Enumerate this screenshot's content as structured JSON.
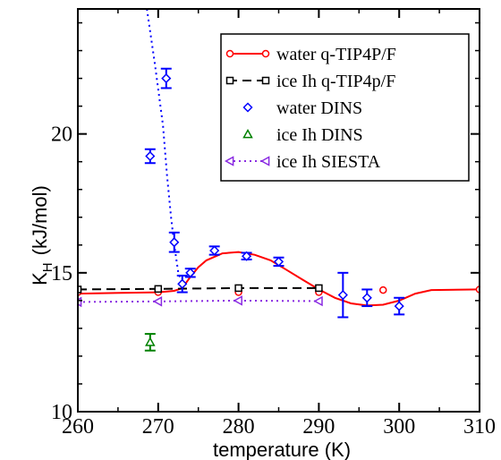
{
  "chart_data": {
    "type": "line",
    "xlabel": "temperature (K)",
    "ylabel_main": "K",
    "ylabel_sub": "H",
    "ylabel_unit": "(kJ/mol)",
    "xlim": [
      260,
      310
    ],
    "ylim": [
      10,
      24.5
    ],
    "xticks": [
      260,
      270,
      280,
      290,
      300,
      310
    ],
    "yticks": [
      10,
      15,
      20
    ],
    "grid": false,
    "legend_position": "top-right",
    "series": [
      {
        "name": "water q-TIP4P/F",
        "color": "#ff0000",
        "line": "solid",
        "marker": "circle",
        "points": [
          [
            260,
            14.3
          ],
          [
            270,
            14.3
          ],
          [
            280,
            14.3
          ],
          [
            290,
            14.3
          ],
          [
            298,
            14.38
          ],
          [
            310,
            14.4
          ]
        ],
        "fit_curve": [
          [
            260,
            14.25
          ],
          [
            270,
            14.3
          ],
          [
            272,
            14.35
          ],
          [
            273,
            14.45
          ],
          [
            274,
            14.85
          ],
          [
            275,
            15.2
          ],
          [
            276,
            15.45
          ],
          [
            278,
            15.7
          ],
          [
            280,
            15.75
          ],
          [
            282,
            15.65
          ],
          [
            284,
            15.45
          ],
          [
            286,
            15.1
          ],
          [
            288,
            14.75
          ],
          [
            290,
            14.4
          ],
          [
            292,
            14.1
          ],
          [
            294,
            13.9
          ],
          [
            296,
            13.82
          ],
          [
            298,
            13.85
          ],
          [
            300,
            14.0
          ],
          [
            302,
            14.25
          ],
          [
            304,
            14.38
          ],
          [
            310,
            14.4
          ]
        ]
      },
      {
        "name": "ice Ih q-TIP4p/F",
        "color": "#000000",
        "line": "dashed",
        "marker": "square",
        "points": [
          [
            260,
            14.4
          ],
          [
            270,
            14.42
          ],
          [
            280,
            14.45
          ],
          [
            290,
            14.45
          ]
        ]
      },
      {
        "name": "water DINS",
        "color": "#0000ff",
        "line": "none",
        "marker": "diamond",
        "points": [
          {
            "x": 269,
            "y": 19.2,
            "err": 0.25
          },
          {
            "x": 271,
            "y": 22.0,
            "err": 0.35
          },
          {
            "x": 272,
            "y": 16.1,
            "err": 0.35
          },
          {
            "x": 273,
            "y": 14.6,
            "err": 0.3
          },
          {
            "x": 274,
            "y": 15.0,
            "err": 0.15
          },
          {
            "x": 277,
            "y": 15.8,
            "err": 0.15
          },
          {
            "x": 281,
            "y": 15.6,
            "err": 0.12
          },
          {
            "x": 285,
            "y": 15.4,
            "err": 0.15
          },
          {
            "x": 293,
            "y": 14.2,
            "err": 0.8
          },
          {
            "x": 296,
            "y": 14.1,
            "err": 0.3
          },
          {
            "x": 300,
            "y": 13.8,
            "err": 0.3
          }
        ],
        "fit_curve": [
          [
            268.6,
            24.5
          ],
          [
            269.6,
            22.5
          ],
          [
            270.6,
            20.3
          ],
          [
            271.1,
            18.5
          ],
          [
            271.6,
            17.0
          ],
          [
            272.0,
            16.0
          ],
          [
            272.5,
            15.0
          ],
          [
            273.0,
            14.6
          ],
          [
            273.5,
            14.4
          ]
        ]
      },
      {
        "name": "ice Ih DINS",
        "color": "#008000",
        "line": "none",
        "marker": "triangle-up",
        "points": [
          {
            "x": 269,
            "y": 12.5,
            "err": 0.3
          }
        ]
      },
      {
        "name": "ice Ih SIESTA",
        "color": "#8a2be2",
        "line": "dotted",
        "marker": "triangle-left",
        "points": [
          [
            260,
            13.95
          ],
          [
            270,
            13.97
          ],
          [
            280,
            14.0
          ],
          [
            290,
            13.98
          ]
        ]
      }
    ]
  }
}
